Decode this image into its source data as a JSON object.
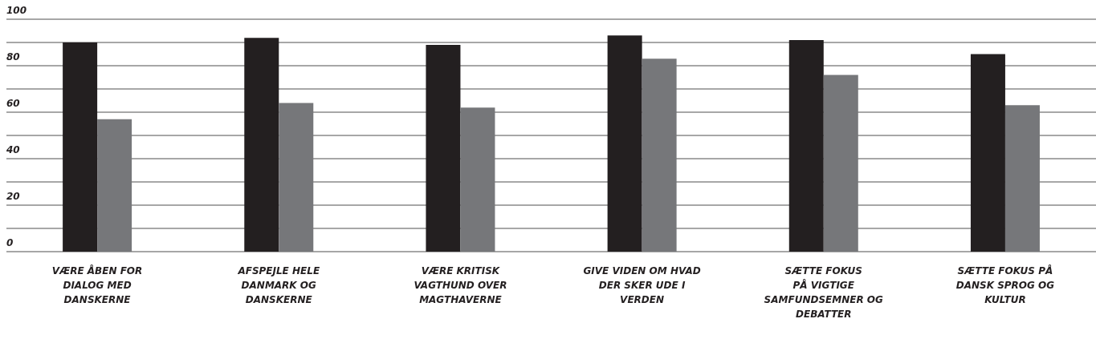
{
  "chart_data": {
    "type": "bar",
    "categories": [
      "VÆRE ÅBEN FOR\nDIALOG MED\nDANSKERNE",
      "AFSPEJLE HELE\nDANMARK OG\nDANSKERNE",
      "VÆRE KRITISK\nVAGTHUND OVER\nMAGTHAVERNE",
      "GIVE VIDEN OM HVAD\nDER SKER UDE I\nVERDEN",
      "SÆTTE FOKUS\nPÅ VIGTIGE\nSAMFUNDSEMNER OG\nDEBATTER",
      "SÆTTE FOKUS PÅ\nDANSK SPROG OG\nKULTUR"
    ],
    "series": [
      {
        "color": "#231f20",
        "values": [
          90,
          92,
          89,
          93,
          91,
          85
        ]
      },
      {
        "color": "#76777a",
        "values": [
          57,
          64,
          62,
          83,
          76,
          63
        ]
      }
    ],
    "ylim": [
      0,
      100
    ],
    "yticks": [
      0,
      {
        "value": 10,
        "label": null
      },
      20,
      {
        "value": 30,
        "label": null
      },
      40,
      {
        "value": 50,
        "label": null
      },
      60,
      {
        "value": 70,
        "label": null
      },
      80,
      {
        "value": 90,
        "label": null
      },
      100
    ],
    "grid": "y",
    "legend": false
  }
}
